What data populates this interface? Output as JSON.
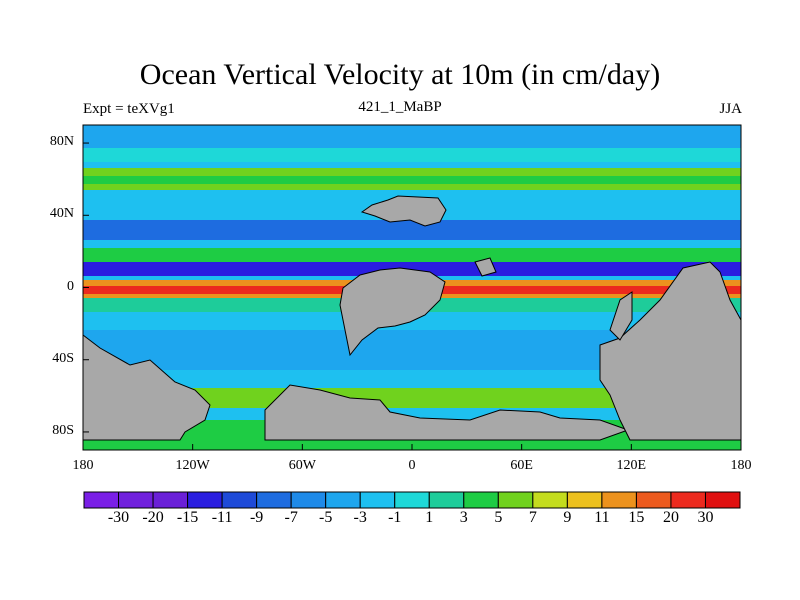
{
  "title": "Ocean Vertical Velocity at 10m (in cm/day)",
  "subtitle_left": "Expt = teXVg1",
  "subtitle_center": "421_1_MaBP",
  "subtitle_right": "JJA",
  "lat_labels": [
    "80N",
    "40N",
    "0",
    "40S",
    "80S"
  ],
  "lat_values": [
    80,
    40,
    0,
    -40,
    -80
  ],
  "lon_labels": [
    "180",
    "120W",
    "60W",
    "0",
    "60E",
    "120E",
    "180"
  ],
  "lon_values": [
    -180,
    -120,
    -60,
    0,
    60,
    120,
    180
  ],
  "colorbar": {
    "labels": [
      "-30",
      "-20",
      "-15",
      "-11",
      "-9",
      "-7",
      "-5",
      "-3",
      "-1",
      "1",
      "3",
      "5",
      "7",
      "9",
      "11",
      "15",
      "20",
      "30"
    ],
    "colors": [
      "#7a1fe6",
      "#7020dc",
      "#6a20d8",
      "#2a1ee0",
      "#1e4ad8",
      "#1e6ce0",
      "#1e8ae8",
      "#1ea6ee",
      "#1ec0f0",
      "#1ed8d8",
      "#1ecc9a",
      "#1ecc44",
      "#70d21e",
      "#c4dc1e",
      "#ecc01e",
      "#ec921e",
      "#ec5a1e",
      "#ec2a1e",
      "#e01010"
    ]
  },
  "colors": {
    "land": "#a8a8a8",
    "ocean_base": "#1ec0f0"
  }
}
